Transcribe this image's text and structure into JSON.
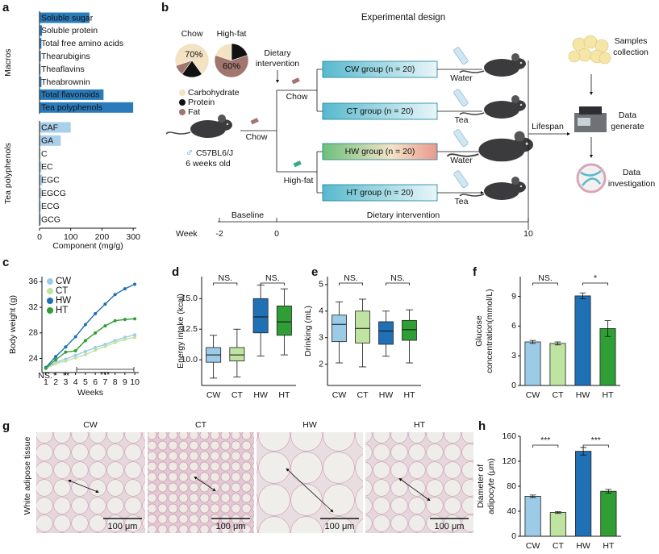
{
  "chart_data": [
    {
      "type": "bar",
      "orientation": "horizontal",
      "label": "a",
      "groups": [
        {
          "name": "Macros",
          "color": "#2b7bba",
          "categories": [
            "Soluble sugar",
            "Soluble protein",
            "Total free amino acids",
            "Thearubigins",
            "Theaflavins",
            "Theabrownin",
            "Total flavonoids",
            "Tea polyphenols"
          ],
          "values": [
            160,
            8,
            6,
            4,
            3,
            6,
            205,
            300
          ]
        },
        {
          "name": "Tea polyphenols",
          "color": "#a9cfea",
          "categories": [
            "CAF",
            "GA",
            "C",
            "EC",
            "EGC",
            "EGCG",
            "ECG",
            "GCG"
          ],
          "values": [
            100,
            68,
            3,
            6,
            9,
            6,
            4,
            5
          ]
        }
      ],
      "xlabel": "Component (mg/g)",
      "xlim": [
        0,
        310
      ],
      "xticks": [
        0,
        100,
        200,
        300
      ]
    },
    {
      "type": "line",
      "label": "c",
      "x": [
        1,
        2,
        3,
        4,
        5,
        6,
        7,
        8,
        9,
        10
      ],
      "xlim": [
        0.6,
        10.4
      ],
      "xticks": [
        1,
        2,
        3,
        4,
        5,
        6,
        7,
        8,
        9,
        10
      ],
      "xlabel": "Weeks",
      "ylabel": "Body weight (g)",
      "ylim": [
        21.8,
        36.8
      ],
      "yticks": [
        24,
        28,
        32,
        36
      ],
      "legend": "upper left",
      "series": [
        {
          "name": "CW",
          "color": "#9ccbe8",
          "values": [
            22.5,
            23.4,
            23.9,
            24.5,
            25.1,
            25.7,
            26.2,
            26.8,
            27.3,
            27.7
          ]
        },
        {
          "name": "CT",
          "color": "#bfe3a0",
          "values": [
            22.4,
            23.2,
            23.6,
            24.1,
            24.6,
            25.3,
            25.9,
            26.5,
            27.0,
            27.3
          ]
        },
        {
          "name": "HW",
          "color": "#1f70b5",
          "values": [
            22.6,
            24.3,
            25.8,
            27.4,
            29.3,
            31.0,
            32.5,
            34.0,
            34.9,
            35.6
          ]
        },
        {
          "name": "HT",
          "color": "#2e9e35",
          "values": [
            22.5,
            23.8,
            25.0,
            25.2,
            26.8,
            28.0,
            29.1,
            29.9,
            30.1,
            30.2
          ]
        }
      ],
      "annotations": [
        "NS.",
        "*",
        "**",
        "***"
      ]
    },
    {
      "type": "box",
      "label": "d",
      "categories": [
        "CW",
        "CT",
        "HW",
        "HT"
      ],
      "colors": [
        "#9ccbe8",
        "#bfe3a0",
        "#1f70b5",
        "#2e9e35"
      ],
      "ylabel": "Energy intake (kcal)",
      "ylim": [
        7.9,
        16.8
      ],
      "yticks": [
        {
          "value": 10,
          "label": "10.0"
        },
        {
          "value": 12.5,
          "label": "12.5"
        },
        {
          "value": 15,
          "label": "15.0"
        }
      ],
      "min": [
        8.5,
        8.6,
        10.3,
        10.4
      ],
      "q1": [
        9.8,
        9.9,
        12.2,
        12.0
      ],
      "median": [
        10.4,
        10.4,
        13.5,
        13.1
      ],
      "q3": [
        11.0,
        11.0,
        15.0,
        14.4
      ],
      "max": [
        12.0,
        12.5,
        16.1,
        15.8
      ],
      "annotations": [
        "NS.",
        "NS."
      ]
    },
    {
      "type": "box",
      "label": "e",
      "categories": [
        "CW",
        "CT",
        "HW",
        "HT"
      ],
      "colors": [
        "#9ccbe8",
        "#bfe3a0",
        "#1f70b5",
        "#2e9e35"
      ],
      "ylabel": "Drinking (mL)",
      "ylim": [
        1.2,
        5.3
      ],
      "yticks": [
        2,
        3,
        4,
        5
      ],
      "min": [
        2.05,
        1.9,
        2.3,
        2.05
      ],
      "q1": [
        2.85,
        2.8,
        2.75,
        2.9
      ],
      "median": [
        3.5,
        3.35,
        3.25,
        3.3
      ],
      "q3": [
        3.85,
        4.0,
        3.6,
        3.65
      ],
      "max": [
        4.35,
        4.45,
        4.0,
        4.05
      ],
      "annotations": [
        "NS.",
        "NS."
      ]
    },
    {
      "type": "bar",
      "label": "f",
      "categories": [
        "CW",
        "CT",
        "HW",
        "HT"
      ],
      "colors": [
        "#9ccbe8",
        "#bfe3a0",
        "#1f70b5",
        "#2e9e35"
      ],
      "ylabel": [
        "Glucose",
        "concentration(mmol/L)"
      ],
      "ylim": [
        0,
        11
      ],
      "yticks": [
        0,
        3,
        6,
        9
      ],
      "values": [
        4.4,
        4.25,
        9.05,
        5.75
      ],
      "errors": [
        0.15,
        0.15,
        0.3,
        0.8
      ],
      "annotations": [
        "NS.",
        "*"
      ]
    },
    {
      "type": "bar",
      "label": "h",
      "categories": [
        "CW",
        "CT",
        "HW",
        "HT"
      ],
      "colors": [
        "#9ccbe8",
        "#bfe3a0",
        "#1f70b5",
        "#2e9e35"
      ],
      "ylabel": [
        "Diameter of",
        "adipocyte (μm)"
      ],
      "ylim": [
        0,
        160
      ],
      "yticks": [
        0,
        40,
        80,
        120,
        160
      ],
      "values": [
        64,
        38,
        136,
        72
      ],
      "errors": [
        2,
        1.5,
        6,
        3
      ],
      "annotations": [
        "***",
        "***"
      ]
    }
  ],
  "diagram": {
    "label": "b",
    "title": "Experimental design",
    "pies": [
      {
        "title": "Chow",
        "values": [
          70,
          20,
          10
        ],
        "value_labels": [
          "70%",
          null,
          null
        ]
      },
      {
        "title": "High-fat",
        "values": [
          20,
          20,
          60
        ],
        "value_labels": [
          null,
          null,
          "60%"
        ]
      }
    ],
    "pie_legend": {
      "names": [
        "Carbohydrate",
        "Protein",
        "Fat"
      ],
      "colors": [
        "#f3e3c3",
        "#111111",
        "#a0766f"
      ]
    },
    "intervention_label": [
      "Dietary",
      "intervention"
    ],
    "sex": "♂",
    "strain": "C57BL6/J",
    "age": "6 weeks old",
    "start_diet": "Chow",
    "branches": [
      "Chow",
      "High-fat"
    ],
    "groups": [
      "CW group (n = 20)",
      "CT group (n = 20)",
      "HW group (n = 20)",
      "HT group (n = 20)"
    ],
    "drinks": [
      "Water",
      "Tea",
      "Water",
      "Tea"
    ],
    "lifespan": "Lifespan",
    "outputs": [
      [
        "Samples",
        "collection"
      ],
      [
        "Data",
        "generate"
      ],
      [
        "Data",
        "investigation"
      ]
    ],
    "timeline": {
      "axis_label": "Week",
      "phases": [
        "Baseline",
        "Dietary intervention"
      ],
      "weeks": [
        -2,
        0,
        10
      ]
    }
  },
  "micrographs": {
    "label": "g",
    "ylabel": "White adipose tissue",
    "titles": [
      "CW",
      "CT",
      "HW",
      "HT"
    ],
    "scale_bars": [
      "100 μm",
      "100 μm",
      "100 μm",
      "100 μm"
    ]
  }
}
